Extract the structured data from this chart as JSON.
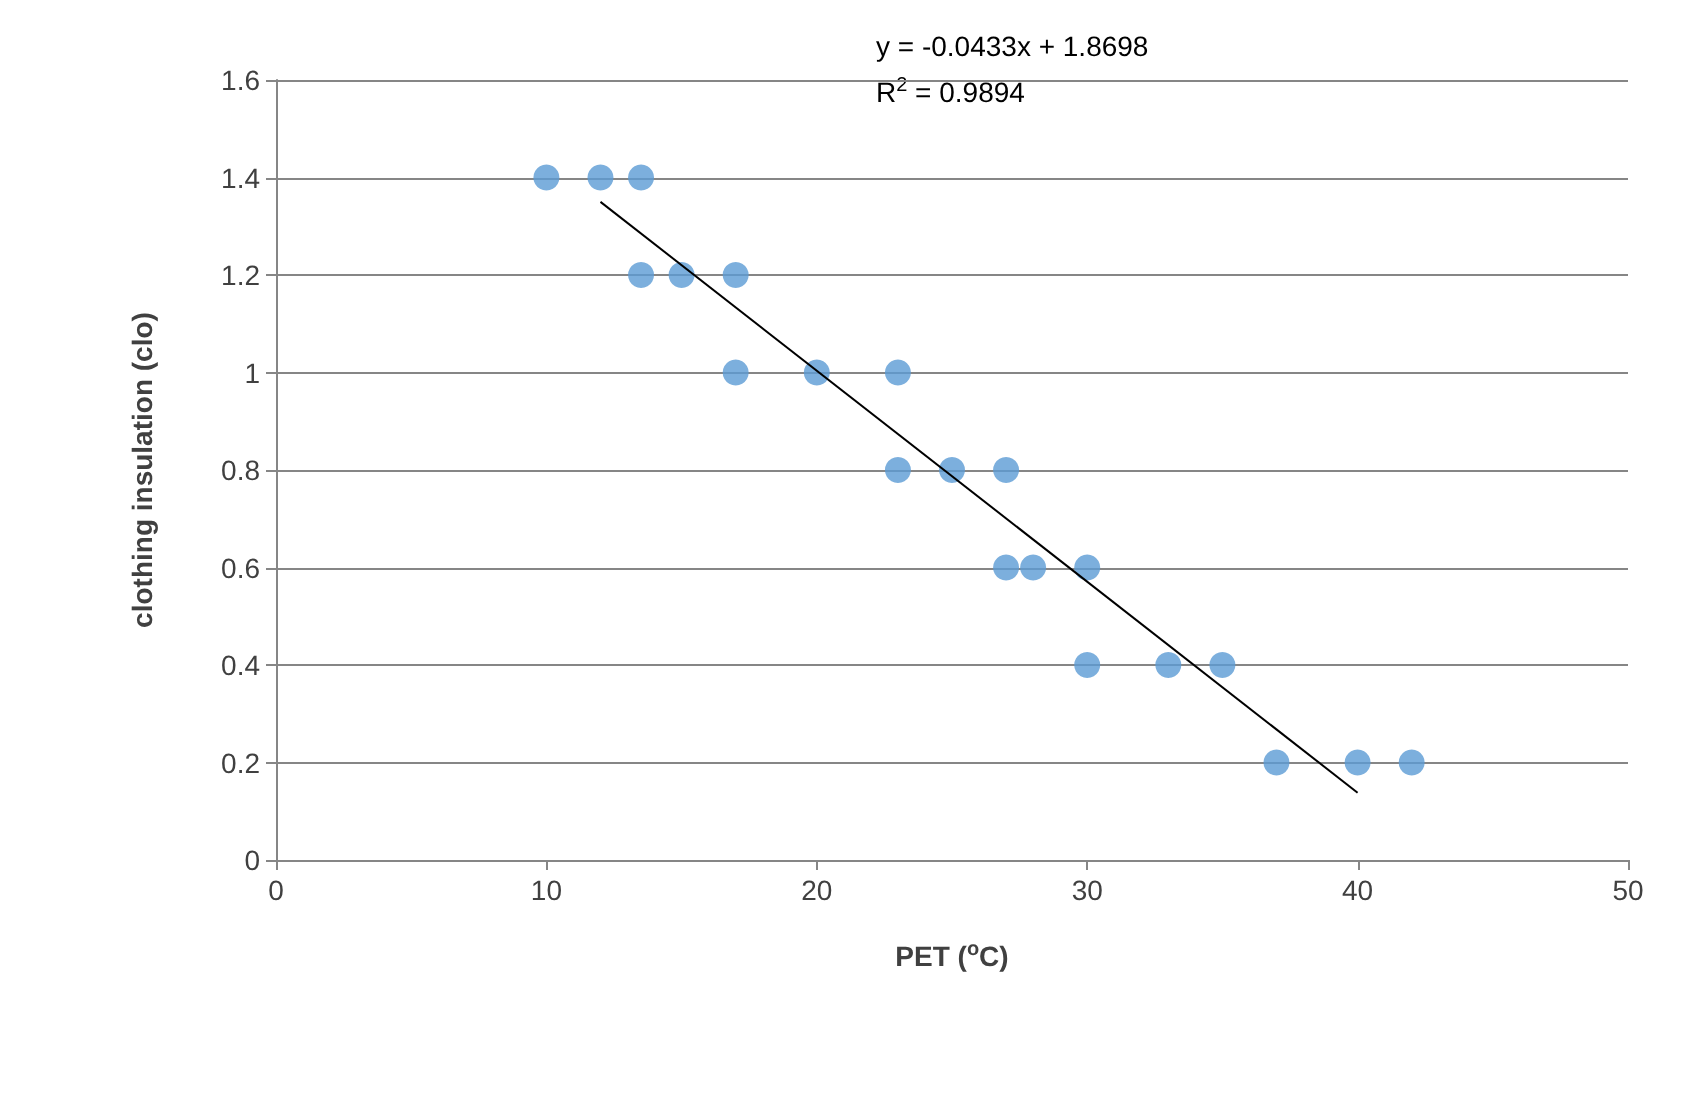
{
  "chart_data": {
    "type": "scatter",
    "xlabel": "PET ($^{o}$C)",
    "ylabel": "clothing insulation (clo)",
    "annotations": [
      "y = -0.0433x + 1.8698",
      "R$^{2}$ = 0.9894"
    ],
    "series": [
      {
        "color": "#5b9bd5",
        "marker": "circle",
        "x": [
          10,
          12,
          13.5,
          13.5,
          15,
          17,
          17,
          20,
          23,
          23,
          25,
          27,
          27,
          28,
          30,
          30,
          33,
          35,
          37,
          40,
          42
        ],
        "values": [
          1.4,
          1.4,
          1.4,
          1.2,
          1.2,
          1.2,
          1.0,
          1.0,
          1.0,
          0.8,
          0.8,
          0.8,
          0.6,
          0.6,
          0.6,
          0.4,
          0.4,
          0.4,
          0.2,
          0.2,
          0.2
        ]
      },
      {
        "type": "line",
        "color": "#000000",
        "marker": "none",
        "line_style": "solid",
        "x": [
          12,
          40
        ],
        "values": [
          1.35,
          0.138
        ]
      }
    ],
    "xlim": [
      0,
      50
    ],
    "xticks": [
      0,
      10,
      20,
      30,
      40,
      50
    ],
    "ylim": [
      0,
      1.6
    ],
    "yticks": [
      0,
      0.2,
      0.4,
      0.6,
      0.8,
      1,
      1.2,
      1.4,
      1.6
    ],
    "grid": "y"
  }
}
